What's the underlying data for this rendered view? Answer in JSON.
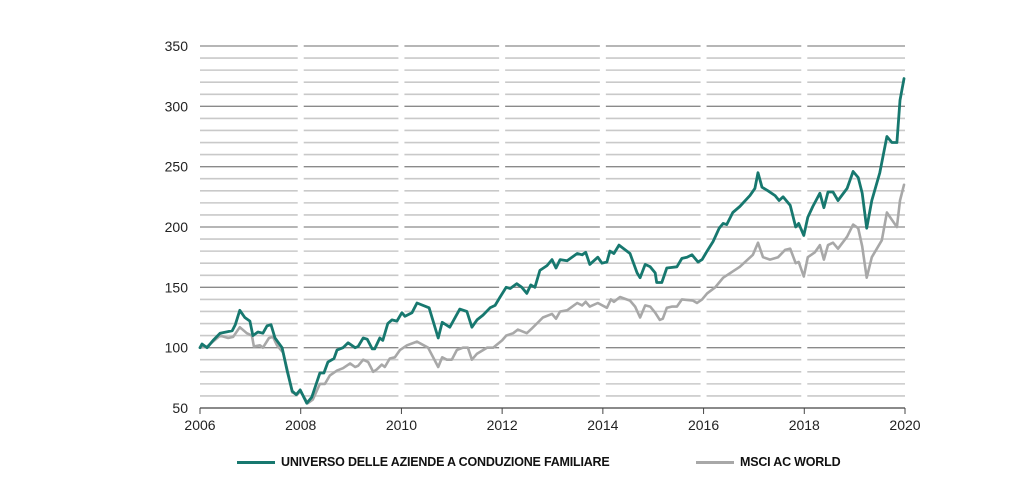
{
  "chart_data": {
    "type": "line",
    "title": "",
    "xlabel": "",
    "ylabel": "",
    "xlim": [
      2006,
      2020
    ],
    "ylim": [
      50,
      350
    ],
    "x_ticks": [
      "2006",
      "2008",
      "2010",
      "2012",
      "2014",
      "2016",
      "2018",
      "2020"
    ],
    "y_ticks": [
      "50",
      "100",
      "150",
      "200",
      "250",
      "300",
      "350"
    ],
    "grid": "horizontal every 10, major every 50",
    "legend_position": "bottom",
    "colors": {
      "family": "#17786f",
      "msci": "#a8a8a8"
    },
    "series": [
      {
        "name": "UNIVERSO DELLE AZIENDE A CONDUZIONE FAMILIARE",
        "color": "#17786f",
        "points": [
          [
            2006.0,
            100
          ],
          [
            2006.04,
            103
          ],
          [
            2006.14,
            100
          ],
          [
            2006.26,
            106
          ],
          [
            2006.4,
            112
          ],
          [
            2006.64,
            114
          ],
          [
            2006.7,
            119
          ],
          [
            2006.79,
            131
          ],
          [
            2006.89,
            125
          ],
          [
            2006.99,
            122
          ],
          [
            2007.05,
            110
          ],
          [
            2007.15,
            113
          ],
          [
            2007.25,
            112
          ],
          [
            2007.33,
            118
          ],
          [
            2007.41,
            119
          ],
          [
            2007.49,
            108
          ],
          [
            2007.63,
            100
          ],
          [
            2007.73,
            81
          ],
          [
            2007.83,
            64
          ],
          [
            2007.91,
            61
          ],
          [
            2007.99,
            65
          ],
          [
            2008.12,
            54
          ],
          [
            2008.22,
            59
          ],
          [
            2008.38,
            79
          ],
          [
            2008.46,
            79
          ],
          [
            2008.54,
            88
          ],
          [
            2008.66,
            91
          ],
          [
            2008.72,
            98
          ],
          [
            2008.84,
            100
          ],
          [
            2008.94,
            104
          ],
          [
            2009.08,
            100
          ],
          [
            2009.14,
            101
          ],
          [
            2009.24,
            108
          ],
          [
            2009.32,
            107
          ],
          [
            2009.42,
            99
          ],
          [
            2009.47,
            99
          ],
          [
            2009.57,
            108
          ],
          [
            2009.63,
            106
          ],
          [
            2009.73,
            120
          ],
          [
            2009.81,
            123
          ],
          [
            2009.91,
            122
          ],
          [
            2010.01,
            129
          ],
          [
            2010.07,
            126
          ],
          [
            2010.21,
            129
          ],
          [
            2010.31,
            137
          ],
          [
            2010.55,
            133
          ],
          [
            2010.73,
            108
          ],
          [
            2010.81,
            121
          ],
          [
            2010.96,
            117
          ],
          [
            2011.16,
            132
          ],
          [
            2011.3,
            130
          ],
          [
            2011.4,
            117
          ],
          [
            2011.5,
            123
          ],
          [
            2011.62,
            127
          ],
          [
            2011.76,
            133
          ],
          [
            2011.86,
            135
          ],
          [
            2011.96,
            142
          ],
          [
            2012.08,
            150
          ],
          [
            2012.16,
            149
          ],
          [
            2012.29,
            153
          ],
          [
            2012.39,
            150
          ],
          [
            2012.49,
            145
          ],
          [
            2012.57,
            152
          ],
          [
            2012.65,
            150
          ],
          [
            2012.75,
            164
          ],
          [
            2012.89,
            168
          ],
          [
            2012.99,
            173
          ],
          [
            2013.07,
            166
          ],
          [
            2013.15,
            173
          ],
          [
            2013.29,
            172
          ],
          [
            2013.49,
            178
          ],
          [
            2013.59,
            177
          ],
          [
            2013.66,
            179
          ],
          [
            2013.74,
            169
          ],
          [
            2013.9,
            175
          ],
          [
            2013.98,
            170
          ],
          [
            2014.08,
            171
          ],
          [
            2014.14,
            180
          ],
          [
            2014.22,
            178
          ],
          [
            2014.32,
            185
          ],
          [
            2014.54,
            178
          ],
          [
            2014.68,
            162
          ],
          [
            2014.74,
            158
          ],
          [
            2014.84,
            169
          ],
          [
            2014.94,
            167
          ],
          [
            2015.04,
            162
          ],
          [
            2015.07,
            154
          ],
          [
            2015.17,
            154
          ],
          [
            2015.27,
            166
          ],
          [
            2015.47,
            167
          ],
          [
            2015.57,
            174
          ],
          [
            2015.67,
            175
          ],
          [
            2015.77,
            177
          ],
          [
            2015.89,
            171
          ],
          [
            2015.97,
            173
          ],
          [
            2016.07,
            180
          ],
          [
            2016.19,
            188
          ],
          [
            2016.31,
            199
          ],
          [
            2016.39,
            203
          ],
          [
            2016.46,
            202
          ],
          [
            2016.58,
            212
          ],
          [
            2016.72,
            217
          ],
          [
            2016.92,
            226
          ],
          [
            2017.02,
            232
          ],
          [
            2017.08,
            245
          ],
          [
            2017.16,
            233
          ],
          [
            2017.28,
            230
          ],
          [
            2017.42,
            226
          ],
          [
            2017.5,
            222
          ],
          [
            2017.58,
            225
          ],
          [
            2017.72,
            218
          ],
          [
            2017.83,
            200
          ],
          [
            2017.89,
            203
          ],
          [
            2017.99,
            193
          ],
          [
            2018.07,
            208
          ],
          [
            2018.17,
            217
          ],
          [
            2018.31,
            228
          ],
          [
            2018.39,
            216
          ],
          [
            2018.47,
            229
          ],
          [
            2018.57,
            229
          ],
          [
            2018.67,
            222
          ],
          [
            2018.85,
            232
          ],
          [
            2018.97,
            246
          ],
          [
            2019.07,
            241
          ],
          [
            2019.15,
            228
          ],
          [
            2019.24,
            199
          ],
          [
            2019.34,
            222
          ],
          [
            2019.5,
            245
          ],
          [
            2019.64,
            275
          ],
          [
            2019.74,
            270
          ],
          [
            2019.84,
            270
          ],
          [
            2019.9,
            305
          ],
          [
            2019.98,
            323
          ]
        ]
      },
      {
        "name": "MSCI AC WORLD",
        "color": "#a8a8a8",
        "points": [
          [
            2006.0,
            100
          ],
          [
            2006.14,
            101
          ],
          [
            2006.4,
            110
          ],
          [
            2006.56,
            108
          ],
          [
            2006.66,
            109
          ],
          [
            2006.79,
            117
          ],
          [
            2006.93,
            112
          ],
          [
            2007.03,
            110
          ],
          [
            2007.07,
            101
          ],
          [
            2007.19,
            102
          ],
          [
            2007.25,
            100
          ],
          [
            2007.37,
            108
          ],
          [
            2007.45,
            109
          ],
          [
            2007.53,
            102
          ],
          [
            2007.65,
            96
          ],
          [
            2007.75,
            79
          ],
          [
            2007.83,
            63
          ],
          [
            2007.93,
            61
          ],
          [
            2007.99,
            64
          ],
          [
            2008.14,
            54
          ],
          [
            2008.24,
            57
          ],
          [
            2008.38,
            70
          ],
          [
            2008.48,
            70
          ],
          [
            2008.58,
            77
          ],
          [
            2008.72,
            81
          ],
          [
            2008.84,
            83
          ],
          [
            2008.98,
            87
          ],
          [
            2009.08,
            84
          ],
          [
            2009.14,
            85
          ],
          [
            2009.24,
            90
          ],
          [
            2009.34,
            88
          ],
          [
            2009.44,
            80
          ],
          [
            2009.51,
            82
          ],
          [
            2009.61,
            86
          ],
          [
            2009.67,
            84
          ],
          [
            2009.77,
            91
          ],
          [
            2009.87,
            92
          ],
          [
            2009.97,
            98
          ],
          [
            2010.11,
            102
          ],
          [
            2010.31,
            105
          ],
          [
            2010.53,
            100
          ],
          [
            2010.73,
            84
          ],
          [
            2010.81,
            92
          ],
          [
            2010.9,
            90
          ],
          [
            2011.0,
            90
          ],
          [
            2011.1,
            98
          ],
          [
            2011.22,
            100
          ],
          [
            2011.32,
            100
          ],
          [
            2011.4,
            90
          ],
          [
            2011.5,
            95
          ],
          [
            2011.7,
            100
          ],
          [
            2011.82,
            100
          ],
          [
            2012.0,
            106
          ],
          [
            2012.08,
            110
          ],
          [
            2012.22,
            112
          ],
          [
            2012.31,
            115
          ],
          [
            2012.49,
            112
          ],
          [
            2012.59,
            116
          ],
          [
            2012.69,
            120
          ],
          [
            2012.81,
            125
          ],
          [
            2012.99,
            128
          ],
          [
            2013.07,
            124
          ],
          [
            2013.15,
            130
          ],
          [
            2013.29,
            131
          ],
          [
            2013.49,
            137
          ],
          [
            2013.59,
            135
          ],
          [
            2013.66,
            138
          ],
          [
            2013.74,
            134
          ],
          [
            2013.9,
            137
          ],
          [
            2014.08,
            133
          ],
          [
            2014.16,
            140
          ],
          [
            2014.22,
            138
          ],
          [
            2014.34,
            142
          ],
          [
            2014.54,
            139
          ],
          [
            2014.64,
            134
          ],
          [
            2014.74,
            125
          ],
          [
            2014.84,
            135
          ],
          [
            2014.94,
            134
          ],
          [
            2015.04,
            129
          ],
          [
            2015.13,
            123
          ],
          [
            2015.19,
            124
          ],
          [
            2015.27,
            133
          ],
          [
            2015.37,
            134
          ],
          [
            2015.47,
            134
          ],
          [
            2015.57,
            140
          ],
          [
            2015.79,
            139
          ],
          [
            2015.87,
            137
          ],
          [
            2015.97,
            140
          ],
          [
            2016.07,
            145
          ],
          [
            2016.23,
            150
          ],
          [
            2016.31,
            154
          ],
          [
            2016.39,
            158
          ],
          [
            2016.72,
            167
          ],
          [
            2016.98,
            177
          ],
          [
            2017.08,
            187
          ],
          [
            2017.18,
            175
          ],
          [
            2017.32,
            173
          ],
          [
            2017.48,
            175
          ],
          [
            2017.62,
            181
          ],
          [
            2017.72,
            182
          ],
          [
            2017.83,
            170
          ],
          [
            2017.89,
            171
          ],
          [
            2017.99,
            159
          ],
          [
            2018.07,
            175
          ],
          [
            2018.21,
            179
          ],
          [
            2018.31,
            185
          ],
          [
            2018.39,
            173
          ],
          [
            2018.47,
            185
          ],
          [
            2018.57,
            187
          ],
          [
            2018.67,
            182
          ],
          [
            2018.85,
            192
          ],
          [
            2018.97,
            202
          ],
          [
            2019.07,
            199
          ],
          [
            2019.15,
            184
          ],
          [
            2019.24,
            158
          ],
          [
            2019.34,
            175
          ],
          [
            2019.54,
            189
          ],
          [
            2019.64,
            212
          ],
          [
            2019.74,
            206
          ],
          [
            2019.84,
            200
          ],
          [
            2019.9,
            222
          ],
          [
            2019.98,
            235
          ]
        ]
      }
    ]
  }
}
